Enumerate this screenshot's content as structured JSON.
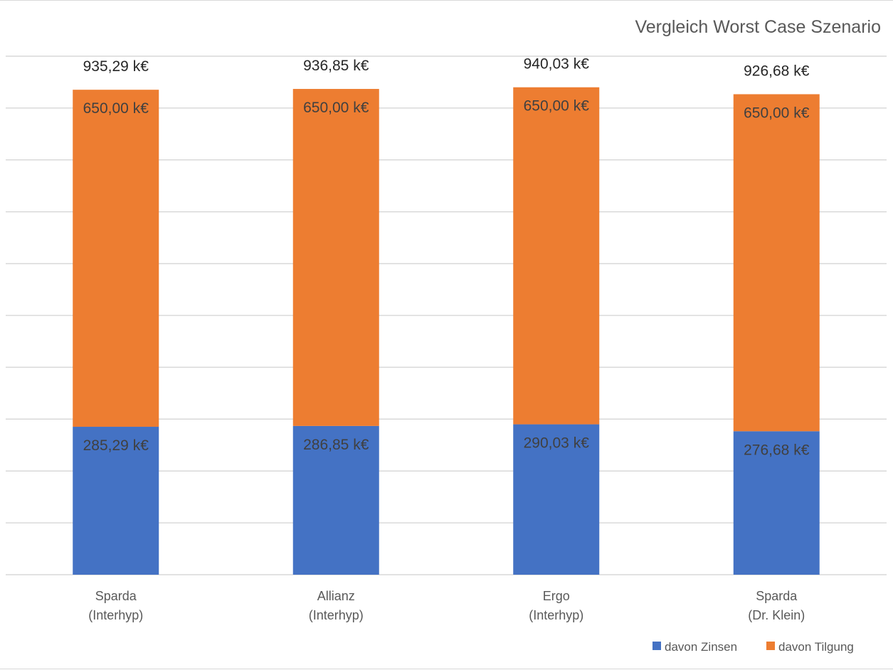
{
  "chart_data": {
    "type": "bar",
    "stacked": true,
    "title": "Vergleich Worst Case Szenario",
    "categories": [
      [
        "Sparda",
        "(Interhyp)"
      ],
      [
        "Allianz",
        "(Interhyp)"
      ],
      [
        "Ergo",
        "(Interhyp)"
      ],
      [
        "Sparda",
        "(Dr. Klein)"
      ]
    ],
    "series": [
      {
        "name": "davon Zinsen",
        "color": "#4472c4",
        "values": [
          285.29,
          286.85,
          290.03,
          276.68
        ],
        "labels": [
          "285,29 k€",
          "286,85 k€",
          "290,03 k€",
          "276,68 k€"
        ]
      },
      {
        "name": "davon Tilgung",
        "color": "#ed7d31",
        "values": [
          650.0,
          650.0,
          650.0,
          650.0
        ],
        "labels": [
          "650,00 k€",
          "650,00 k€",
          "650,00 k€",
          "650,00 k€"
        ]
      }
    ],
    "totals": {
      "values": [
        935.29,
        936.85,
        940.03,
        926.68
      ],
      "labels": [
        "935,29 k€",
        "936,85 k€",
        "940,03 k€",
        "926,68 k€"
      ]
    },
    "ylim": [
      0,
      1000
    ],
    "grid": true,
    "legend_position": "bottom-right"
  }
}
